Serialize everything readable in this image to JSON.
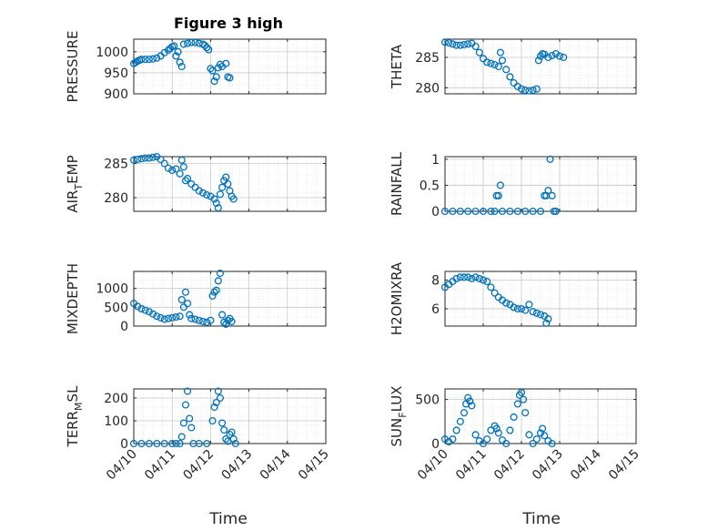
{
  "figure": {
    "title": "Figure 3 high",
    "xlabel": "Time",
    "x_ticks": [
      "04/10",
      "04/11",
      "04/12",
      "04/13",
      "04/14",
      "04/15"
    ],
    "marker_color": "#0072BD"
  },
  "chart_data": [
    {
      "type": "scatter",
      "ylabel": "PRESSURE",
      "x_range": [
        "04/10",
        "04/15"
      ],
      "ylim": [
        900,
        1030
      ],
      "yticks": [
        900,
        950,
        1000
      ],
      "grid": true,
      "points": [
        [
          0,
          972
        ],
        [
          0.05,
          975
        ],
        [
          0.1,
          978
        ],
        [
          0.15,
          980
        ],
        [
          0.2,
          982
        ],
        [
          0.3,
          982
        ],
        [
          0.4,
          982
        ],
        [
          0.5,
          983
        ],
        [
          0.6,
          985
        ],
        [
          0.7,
          990
        ],
        [
          0.8,
          998
        ],
        [
          0.9,
          1004
        ],
        [
          0.95,
          1008
        ],
        [
          1.0,
          1012
        ],
        [
          1.05,
          1014
        ],
        [
          1.1,
          990
        ],
        [
          1.15,
          1000
        ],
        [
          1.2,
          975
        ],
        [
          1.25,
          965
        ],
        [
          1.3,
          1018
        ],
        [
          1.4,
          1020
        ],
        [
          1.5,
          1022
        ],
        [
          1.6,
          1022
        ],
        [
          1.7,
          1020
        ],
        [
          1.8,
          1018
        ],
        [
          1.85,
          1015
        ],
        [
          1.9,
          1010
        ],
        [
          1.95,
          1005
        ],
        [
          2.0,
          960
        ],
        [
          2.05,
          955
        ],
        [
          2.1,
          930
        ],
        [
          2.15,
          940
        ],
        [
          2.2,
          962
        ],
        [
          2.25,
          970
        ],
        [
          2.3,
          965
        ],
        [
          2.4,
          972
        ],
        [
          2.45,
          940
        ],
        [
          2.5,
          938
        ]
      ]
    },
    {
      "type": "scatter",
      "ylabel": "THETA",
      "x_range": [
        "04/10",
        "04/15"
      ],
      "ylim": [
        279,
        288
      ],
      "yticks": [
        280,
        285
      ],
      "grid": true,
      "points": [
        [
          0,
          287.5
        ],
        [
          0.1,
          287.4
        ],
        [
          0.2,
          287.2
        ],
        [
          0.3,
          287.0
        ],
        [
          0.4,
          287.0
        ],
        [
          0.5,
          287.1
        ],
        [
          0.6,
          287.2
        ],
        [
          0.7,
          287.3
        ],
        [
          0.8,
          286.8
        ],
        [
          0.9,
          285.8
        ],
        [
          1.0,
          284.8
        ],
        [
          1.1,
          284.2
        ],
        [
          1.2,
          284.0
        ],
        [
          1.3,
          283.8
        ],
        [
          1.4,
          283.5
        ],
        [
          1.45,
          285.8
        ],
        [
          1.5,
          284.5
        ],
        [
          1.6,
          283.0
        ],
        [
          1.7,
          281.8
        ],
        [
          1.8,
          280.8
        ],
        [
          1.9,
          280.2
        ],
        [
          2.0,
          279.8
        ],
        [
          2.1,
          279.6
        ],
        [
          2.2,
          279.5
        ],
        [
          2.3,
          279.6
        ],
        [
          2.4,
          279.8
        ],
        [
          2.45,
          284.5
        ],
        [
          2.5,
          285.2
        ],
        [
          2.55,
          285.6
        ],
        [
          2.6,
          285.5
        ],
        [
          2.7,
          285.0
        ],
        [
          2.8,
          285.3
        ],
        [
          2.9,
          285.6
        ],
        [
          3.0,
          285.2
        ],
        [
          3.1,
          285.0
        ]
      ]
    },
    {
      "type": "scatter",
      "ylabel": "AIR_TEMP",
      "x_range": [
        "04/10",
        "04/15"
      ],
      "ylim": [
        278,
        286
      ],
      "yticks": [
        280,
        285
      ],
      "grid": true,
      "points": [
        [
          0,
          285.5
        ],
        [
          0.1,
          285.6
        ],
        [
          0.2,
          285.7
        ],
        [
          0.3,
          285.8
        ],
        [
          0.4,
          285.8
        ],
        [
          0.5,
          285.9
        ],
        [
          0.6,
          286.0
        ],
        [
          0.7,
          285.6
        ],
        [
          0.8,
          285.0
        ],
        [
          0.9,
          284.3
        ],
        [
          1.0,
          284.0
        ],
        [
          1.1,
          284.2
        ],
        [
          1.2,
          283.5
        ],
        [
          1.25,
          285.5
        ],
        [
          1.3,
          284.5
        ],
        [
          1.35,
          282.5
        ],
        [
          1.4,
          282.8
        ],
        [
          1.5,
          282.0
        ],
        [
          1.6,
          281.5
        ],
        [
          1.7,
          281.0
        ],
        [
          1.8,
          280.7
        ],
        [
          1.9,
          280.4
        ],
        [
          2.0,
          280.2
        ],
        [
          2.1,
          279.8
        ],
        [
          2.15,
          279.2
        ],
        [
          2.2,
          278.5
        ],
        [
          2.25,
          280.5
        ],
        [
          2.3,
          281.5
        ],
        [
          2.35,
          282.5
        ],
        [
          2.4,
          283.0
        ],
        [
          2.45,
          282.0
        ],
        [
          2.5,
          281.0
        ],
        [
          2.55,
          280.2
        ],
        [
          2.6,
          279.8
        ]
      ]
    },
    {
      "type": "scatter",
      "ylabel": "RAINFALL",
      "x_range": [
        "04/10",
        "04/15"
      ],
      "ylim": [
        0,
        1.05
      ],
      "yticks": [
        0,
        0.5,
        1
      ],
      "grid": true,
      "points": [
        [
          0,
          0
        ],
        [
          0.2,
          0
        ],
        [
          0.4,
          0
        ],
        [
          0.6,
          0
        ],
        [
          0.8,
          0
        ],
        [
          1.0,
          0
        ],
        [
          1.2,
          0
        ],
        [
          1.3,
          0
        ],
        [
          1.35,
          0.3
        ],
        [
          1.4,
          0.3
        ],
        [
          1.45,
          0.5
        ],
        [
          1.5,
          0
        ],
        [
          1.7,
          0
        ],
        [
          1.9,
          0
        ],
        [
          2.1,
          0
        ],
        [
          2.3,
          0
        ],
        [
          2.5,
          0
        ],
        [
          2.6,
          0.3
        ],
        [
          2.65,
          0.3
        ],
        [
          2.7,
          0.4
        ],
        [
          2.75,
          1.0
        ],
        [
          2.8,
          0.3
        ],
        [
          2.85,
          0
        ],
        [
          2.9,
          0
        ]
      ]
    },
    {
      "type": "scatter",
      "ylabel": "MIXDEPTH",
      "x_range": [
        "04/10",
        "04/15"
      ],
      "ylim": [
        0,
        1450
      ],
      "yticks": [
        0,
        500,
        1000
      ],
      "grid": true,
      "points": [
        [
          0,
          600
        ],
        [
          0.1,
          520
        ],
        [
          0.2,
          460
        ],
        [
          0.3,
          420
        ],
        [
          0.4,
          380
        ],
        [
          0.5,
          320
        ],
        [
          0.6,
          260
        ],
        [
          0.7,
          220
        ],
        [
          0.8,
          180
        ],
        [
          0.9,
          200
        ],
        [
          1.0,
          220
        ],
        [
          1.1,
          240
        ],
        [
          1.2,
          260
        ],
        [
          1.25,
          700
        ],
        [
          1.3,
          500
        ],
        [
          1.35,
          900
        ],
        [
          1.4,
          600
        ],
        [
          1.45,
          300
        ],
        [
          1.5,
          200
        ],
        [
          1.6,
          180
        ],
        [
          1.7,
          150
        ],
        [
          1.8,
          120
        ],
        [
          1.9,
          100
        ],
        [
          2.0,
          150
        ],
        [
          2.05,
          800
        ],
        [
          2.1,
          900
        ],
        [
          2.15,
          950
        ],
        [
          2.2,
          1200
        ],
        [
          2.25,
          1400
        ],
        [
          2.3,
          300
        ],
        [
          2.35,
          100
        ],
        [
          2.4,
          50
        ],
        [
          2.45,
          150
        ],
        [
          2.5,
          200
        ],
        [
          2.55,
          120
        ]
      ]
    },
    {
      "type": "scatter",
      "ylabel": "H2OMIXRA",
      "x_range": [
        "04/10",
        "04/15"
      ],
      "ylim": [
        4.8,
        8.6
      ],
      "yticks": [
        6,
        8
      ],
      "grid": true,
      "points": [
        [
          0,
          7.5
        ],
        [
          0.1,
          7.7
        ],
        [
          0.2,
          7.9
        ],
        [
          0.3,
          8.1
        ],
        [
          0.4,
          8.2
        ],
        [
          0.5,
          8.2
        ],
        [
          0.6,
          8.2
        ],
        [
          0.7,
          8.1
        ],
        [
          0.8,
          8.2
        ],
        [
          0.9,
          8.1
        ],
        [
          1.0,
          8.0
        ],
        [
          1.1,
          7.9
        ],
        [
          1.2,
          7.5
        ],
        [
          1.3,
          7.1
        ],
        [
          1.4,
          6.8
        ],
        [
          1.5,
          6.6
        ],
        [
          1.6,
          6.4
        ],
        [
          1.7,
          6.3
        ],
        [
          1.8,
          6.1
        ],
        [
          1.9,
          6.0
        ],
        [
          2.0,
          6.0
        ],
        [
          2.1,
          5.9
        ],
        [
          2.2,
          6.3
        ],
        [
          2.3,
          5.8
        ],
        [
          2.4,
          5.7
        ],
        [
          2.5,
          5.6
        ],
        [
          2.6,
          5.5
        ],
        [
          2.65,
          5.0
        ],
        [
          2.7,
          5.3
        ]
      ]
    },
    {
      "type": "scatter",
      "ylabel": "TERR_MSL",
      "x_range": [
        "04/10",
        "04/15"
      ],
      "ylim": [
        0,
        240
      ],
      "yticks": [
        0,
        100,
        200
      ],
      "grid": true,
      "points": [
        [
          0,
          0
        ],
        [
          0.2,
          0
        ],
        [
          0.4,
          0
        ],
        [
          0.6,
          0
        ],
        [
          0.8,
          0
        ],
        [
          1.0,
          0
        ],
        [
          1.1,
          0
        ],
        [
          1.2,
          0
        ],
        [
          1.25,
          30
        ],
        [
          1.3,
          90
        ],
        [
          1.35,
          170
        ],
        [
          1.4,
          230
        ],
        [
          1.45,
          110
        ],
        [
          1.5,
          70
        ],
        [
          1.55,
          0
        ],
        [
          1.7,
          0
        ],
        [
          1.9,
          0
        ],
        [
          2.05,
          100
        ],
        [
          2.1,
          160
        ],
        [
          2.15,
          180
        ],
        [
          2.2,
          230
        ],
        [
          2.25,
          200
        ],
        [
          2.3,
          90
        ],
        [
          2.35,
          60
        ],
        [
          2.4,
          20
        ],
        [
          2.45,
          10
        ],
        [
          2.5,
          40
        ],
        [
          2.55,
          50
        ],
        [
          2.6,
          20
        ],
        [
          2.65,
          0
        ]
      ]
    },
    {
      "type": "scatter",
      "ylabel": "SUN_FLUX",
      "x_range": [
        "04/10",
        "04/15"
      ],
      "ylim": [
        0,
        620
      ],
      "yticks": [
        0,
        500
      ],
      "grid": true,
      "points": [
        [
          0,
          50
        ],
        [
          0.1,
          20
        ],
        [
          0.2,
          50
        ],
        [
          0.3,
          150
        ],
        [
          0.4,
          250
        ],
        [
          0.5,
          350
        ],
        [
          0.55,
          450
        ],
        [
          0.6,
          520
        ],
        [
          0.65,
          480
        ],
        [
          0.7,
          430
        ],
        [
          0.8,
          100
        ],
        [
          0.9,
          30
        ],
        [
          1.0,
          0
        ],
        [
          1.1,
          50
        ],
        [
          1.2,
          150
        ],
        [
          1.3,
          200
        ],
        [
          1.35,
          170
        ],
        [
          1.4,
          120
        ],
        [
          1.5,
          40
        ],
        [
          1.6,
          0
        ],
        [
          1.7,
          150
        ],
        [
          1.8,
          300
        ],
        [
          1.9,
          450
        ],
        [
          1.95,
          550
        ],
        [
          2.0,
          580
        ],
        [
          2.05,
          500
        ],
        [
          2.1,
          350
        ],
        [
          2.2,
          100
        ],
        [
          2.3,
          0
        ],
        [
          2.4,
          50
        ],
        [
          2.5,
          120
        ],
        [
          2.55,
          170
        ],
        [
          2.6,
          90
        ],
        [
          2.7,
          30
        ],
        [
          2.8,
          0
        ]
      ]
    }
  ]
}
